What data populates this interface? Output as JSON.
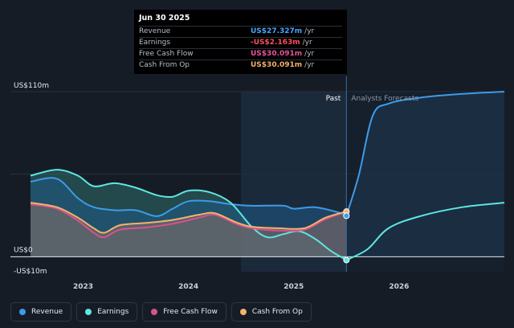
{
  "tooltip": {
    "date": "Jun 30 2025",
    "rows": [
      {
        "label": "Revenue",
        "value": "US$27.327m",
        "unit": "/yr",
        "color": "#4aa3ff"
      },
      {
        "label": "Earnings",
        "value": "-US$2.163m",
        "unit": "/yr",
        "color": "#ff4d5e"
      },
      {
        "label": "Free Cash Flow",
        "value": "US$30.091m",
        "unit": "/yr",
        "color": "#e8559a"
      },
      {
        "label": "Cash From Op",
        "value": "US$30.091m",
        "unit": "/yr",
        "color": "#f2b36b"
      }
    ]
  },
  "legend": [
    {
      "label": "Revenue",
      "color": "#3d9be9"
    },
    {
      "label": "Earnings",
      "color": "#5ee6e0"
    },
    {
      "label": "Free Cash Flow",
      "color": "#d9528c"
    },
    {
      "label": "Cash From Op",
      "color": "#f2b36b"
    }
  ],
  "chart_data": {
    "type": "area",
    "ylim": [
      -10,
      110
    ],
    "y_tick_labels": [
      {
        "value": 110,
        "label": "US$110m"
      },
      {
        "value": 0,
        "label": "US$0"
      },
      {
        "value": -10,
        "label": "-US$10m"
      }
    ],
    "x_tick_labels": [
      {
        "value": 2023.0,
        "label": "2023"
      },
      {
        "value": 2024.0,
        "label": "2024"
      },
      {
        "value": 2025.0,
        "label": "2025"
      },
      {
        "value": 2026.0,
        "label": "2026"
      }
    ],
    "xlim": [
      2022.5,
      2027.0
    ],
    "past_label": "Past",
    "forecast_label": "Analysts Forecasts",
    "divider_x": 2025.5,
    "past_shade_start": 2024.5,
    "series": [
      {
        "name": "Revenue",
        "color": "#3d9be9",
        "past": [
          [
            2022.5,
            50
          ],
          [
            2022.75,
            52
          ],
          [
            2022.95,
            39
          ],
          [
            2023.1,
            33
          ],
          [
            2023.3,
            31
          ],
          [
            2023.5,
            31
          ],
          [
            2023.7,
            27
          ],
          [
            2023.85,
            32
          ],
          [
            2024.0,
            37
          ],
          [
            2024.2,
            37
          ],
          [
            2024.4,
            35
          ],
          [
            2024.6,
            34
          ],
          [
            2024.9,
            34
          ],
          [
            2025.0,
            32
          ],
          [
            2025.2,
            33
          ],
          [
            2025.4,
            30
          ],
          [
            2025.5,
            27.3
          ]
        ],
        "forecast": [
          [
            2025.5,
            27.3
          ],
          [
            2025.62,
            55
          ],
          [
            2025.75,
            94
          ],
          [
            2025.9,
            102
          ],
          [
            2026.2,
            106
          ],
          [
            2026.6,
            108.5
          ],
          [
            2027.0,
            110
          ]
        ]
      },
      {
        "name": "Earnings",
        "color": "#5ee6e0",
        "past": [
          [
            2022.5,
            54
          ],
          [
            2022.75,
            58
          ],
          [
            2022.95,
            54
          ],
          [
            2023.1,
            47
          ],
          [
            2023.3,
            49
          ],
          [
            2023.5,
            46
          ],
          [
            2023.7,
            41
          ],
          [
            2023.85,
            40
          ],
          [
            2024.0,
            44
          ],
          [
            2024.2,
            43
          ],
          [
            2024.4,
            36
          ],
          [
            2024.6,
            20
          ],
          [
            2024.75,
            13
          ],
          [
            2024.9,
            15
          ],
          [
            2025.05,
            17
          ],
          [
            2025.2,
            12
          ],
          [
            2025.35,
            4
          ],
          [
            2025.5,
            -2.2
          ]
        ],
        "forecast": [
          [
            2025.5,
            -2.2
          ],
          [
            2025.7,
            5
          ],
          [
            2025.9,
            19
          ],
          [
            2026.2,
            27
          ],
          [
            2026.6,
            33
          ],
          [
            2027.0,
            36
          ]
        ]
      },
      {
        "name": "Free Cash Flow",
        "color": "#d9528c",
        "past": [
          [
            2022.5,
            35
          ],
          [
            2022.75,
            32
          ],
          [
            2022.95,
            24
          ],
          [
            2023.1,
            16
          ],
          [
            2023.2,
            13
          ],
          [
            2023.35,
            18
          ],
          [
            2023.6,
            19.5
          ],
          [
            2023.85,
            22
          ],
          [
            2024.1,
            26
          ],
          [
            2024.25,
            28
          ],
          [
            2024.45,
            22
          ],
          [
            2024.6,
            19
          ],
          [
            2024.85,
            17.5
          ],
          [
            2025.1,
            18
          ],
          [
            2025.3,
            25
          ],
          [
            2025.5,
            30.1
          ]
        ],
        "forecast": []
      },
      {
        "name": "Cash From Op",
        "color": "#f2b36b",
        "past": [
          [
            2022.5,
            36
          ],
          [
            2022.75,
            33
          ],
          [
            2022.95,
            26
          ],
          [
            2023.1,
            19
          ],
          [
            2023.2,
            16
          ],
          [
            2023.35,
            21
          ],
          [
            2023.6,
            22.5
          ],
          [
            2023.85,
            24.5
          ],
          [
            2024.1,
            28
          ],
          [
            2024.25,
            29
          ],
          [
            2024.45,
            23
          ],
          [
            2024.6,
            20
          ],
          [
            2024.85,
            19
          ],
          [
            2025.1,
            19
          ],
          [
            2025.3,
            26
          ],
          [
            2025.5,
            30.1
          ]
        ],
        "forecast": []
      }
    ]
  }
}
